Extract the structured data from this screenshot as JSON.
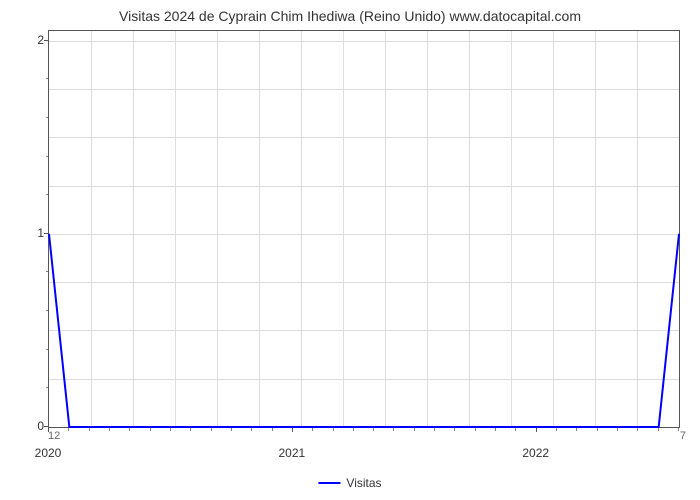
{
  "chart": {
    "type": "line",
    "title": "Visitas 2024 de Cyprain Chim Ihediwa (Reino Unido) www.datocapital.com",
    "title_fontsize": 14,
    "title_color": "#333333",
    "background_color": "#ffffff",
    "plot_border_color": "#555555",
    "grid_color": "#dddddd",
    "x": {
      "labels": [
        "2020",
        "2021",
        "2022"
      ],
      "positions": [
        0,
        12,
        24
      ],
      "domain_min": 0,
      "domain_max": 31,
      "minor_step": 1,
      "label_fontsize": 12
    },
    "y": {
      "ticks": [
        0,
        1,
        2
      ],
      "domain_min": 0,
      "domain_max": 2.05,
      "minor_count_between": 4,
      "label_fontsize": 12
    },
    "series": {
      "name": "Visitas",
      "color": "#0000ff",
      "line_width": 2,
      "data": [
        {
          "x": 0,
          "y": 1
        },
        {
          "x": 1,
          "y": 0
        },
        {
          "x": 2,
          "y": 0
        },
        {
          "x": 3,
          "y": 0
        },
        {
          "x": 4,
          "y": 0
        },
        {
          "x": 5,
          "y": 0
        },
        {
          "x": 6,
          "y": 0
        },
        {
          "x": 7,
          "y": 0
        },
        {
          "x": 8,
          "y": 0
        },
        {
          "x": 9,
          "y": 0
        },
        {
          "x": 10,
          "y": 0
        },
        {
          "x": 11,
          "y": 0
        },
        {
          "x": 12,
          "y": 0
        },
        {
          "x": 13,
          "y": 0
        },
        {
          "x": 14,
          "y": 0
        },
        {
          "x": 15,
          "y": 0
        },
        {
          "x": 16,
          "y": 0
        },
        {
          "x": 17,
          "y": 0
        },
        {
          "x": 18,
          "y": 0
        },
        {
          "x": 19,
          "y": 0
        },
        {
          "x": 20,
          "y": 0
        },
        {
          "x": 21,
          "y": 0
        },
        {
          "x": 22,
          "y": 0
        },
        {
          "x": 23,
          "y": 0
        },
        {
          "x": 24,
          "y": 0
        },
        {
          "x": 25,
          "y": 0
        },
        {
          "x": 26,
          "y": 0
        },
        {
          "x": 27,
          "y": 0
        },
        {
          "x": 28,
          "y": 0
        },
        {
          "x": 29,
          "y": 0
        },
        {
          "x": 30,
          "y": 0
        },
        {
          "x": 31,
          "y": 1
        }
      ]
    },
    "secondary_left_label": "12",
    "secondary_right_label": "7",
    "legend_label": "Visitas",
    "vgrid_count": 15
  }
}
